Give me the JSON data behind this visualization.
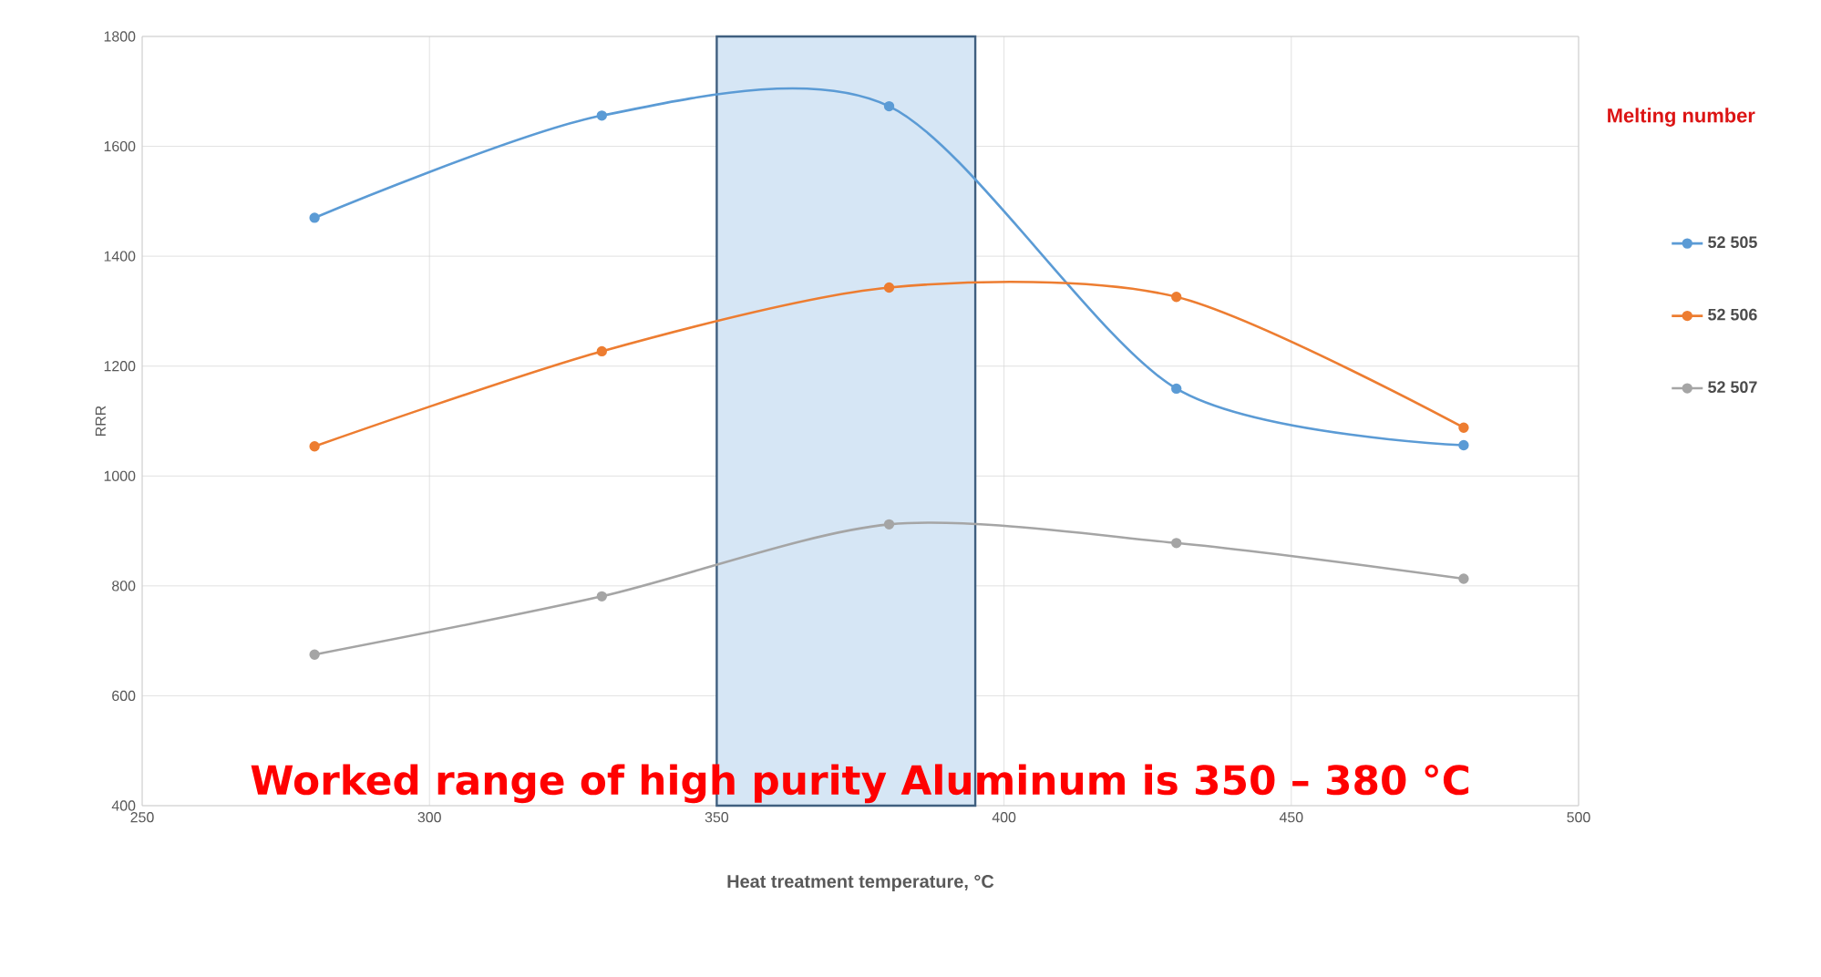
{
  "chart_data": {
    "type": "line",
    "x": [
      280,
      330,
      380,
      430,
      480
    ],
    "series": [
      {
        "name": "52 505",
        "color": "#5b9bd5",
        "values": [
          1470,
          1656,
          1673,
          1159,
          1056
        ]
      },
      {
        "name": "52 506",
        "color": "#ed7d31",
        "values": [
          1054,
          1227,
          1343,
          1326,
          1088
        ]
      },
      {
        "name": "52 507",
        "color": "#a5a5a5",
        "values": [
          675,
          781,
          912,
          878,
          813
        ]
      }
    ],
    "xlim": [
      250,
      500
    ],
    "ylim": [
      400,
      1800
    ],
    "xticks": [
      250,
      300,
      350,
      400,
      450,
      500
    ],
    "yticks": [
      400,
      600,
      800,
      1000,
      1200,
      1400,
      1600,
      1800
    ],
    "xlabel": "Heat treatment temperature, °C",
    "ylabel": "RRR",
    "legend_title": "Melting number",
    "legend": "right",
    "grid": true,
    "marker": "circle",
    "bands": [
      {
        "axis": "x",
        "from": 350,
        "to": 395,
        "color": "#d6e6f5"
      }
    ],
    "annotations": [
      "Worked range of high purity Aluminum is 350 – 380 °C"
    ]
  }
}
